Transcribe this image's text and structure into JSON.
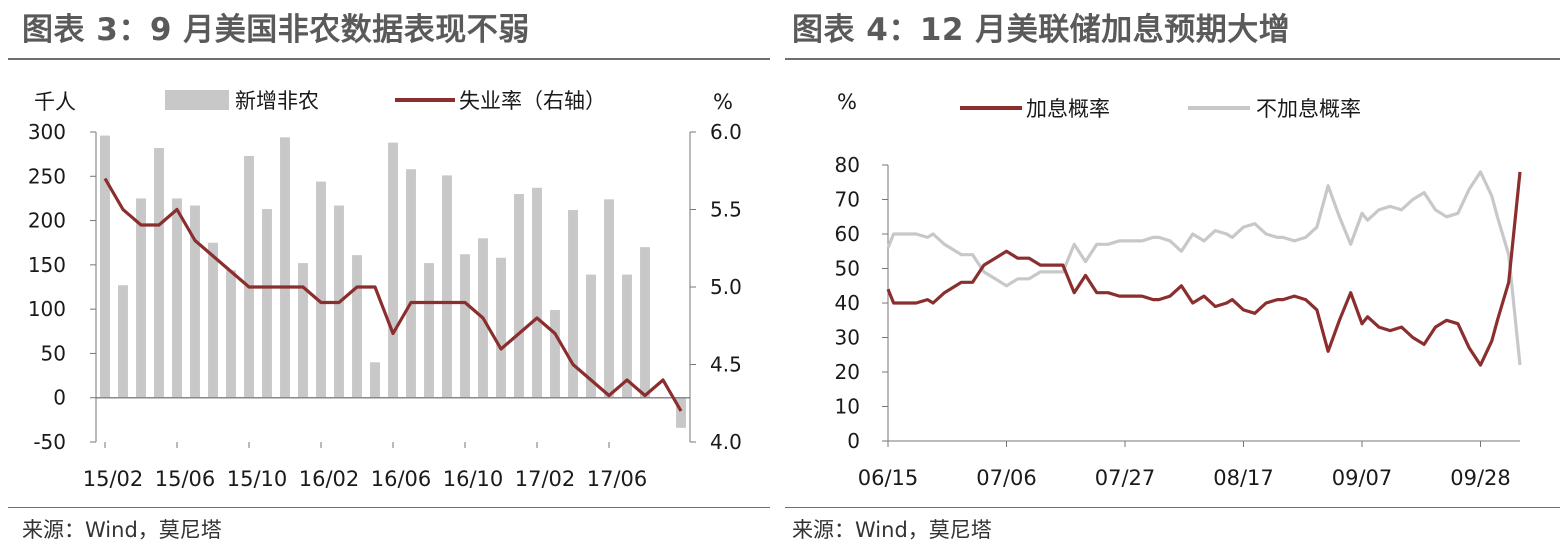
{
  "left": {
    "title": "图表 3：9 月美国非农数据表现不弱",
    "source": "来源：Wind，莫尼塔"
  },
  "right": {
    "title": "图表 4：12 月美联储加息预期大增",
    "source": "来源：Wind，莫尼塔"
  },
  "chart_data": [
    {
      "type": "bar+line",
      "title": "图表 3：9 月美国非农数据表现不弱",
      "ylabel": "千人",
      "y2label": "%",
      "ylim": [
        -50,
        300
      ],
      "yticks": [
        -50,
        0,
        50,
        100,
        150,
        200,
        250,
        300
      ],
      "y2lim": [
        4.0,
        6.0
      ],
      "y2ticks": [
        "4.0",
        "4.5",
        "5.0",
        "5.5",
        "6.0"
      ],
      "x_tick_labels": [
        "15/02",
        "15/06",
        "15/10",
        "16/02",
        "16/06",
        "16/10",
        "17/02",
        "17/06"
      ],
      "x_tick_indices": [
        0,
        4,
        8,
        12,
        16,
        20,
        24,
        28
      ],
      "categories": [
        "15/01",
        "15/02",
        "15/03",
        "15/04",
        "15/05",
        "15/06",
        "15/07",
        "15/08",
        "15/09",
        "15/10",
        "15/11",
        "15/12",
        "16/01",
        "16/02",
        "16/03",
        "16/04",
        "16/05",
        "16/06",
        "16/07",
        "16/08",
        "16/09",
        "16/10",
        "16/11",
        "16/12",
        "17/01",
        "17/02",
        "17/03",
        "17/04",
        "17/05",
        "17/06",
        "17/07",
        "17/08",
        "17/09"
      ],
      "legend_position": "top",
      "series": [
        {
          "name": "新增非农",
          "kind": "bar",
          "axis": "left",
          "color": "#c8c8c8",
          "values": [
            296,
            127,
            225,
            282,
            225,
            217,
            175,
            144,
            273,
            213,
            294,
            152,
            244,
            217,
            161,
            40,
            288,
            258,
            152,
            251,
            162,
            180,
            158,
            230,
            237,
            99,
            212,
            139,
            224,
            139,
            170,
            0,
            -34
          ]
        },
        {
          "name": "失业率（右轴）",
          "kind": "line",
          "axis": "right",
          "color": "#8b2e2e",
          "values": [
            5.7,
            5.5,
            5.4,
            5.4,
            5.5,
            5.3,
            5.2,
            5.1,
            5.0,
            5.0,
            5.0,
            5.0,
            4.9,
            4.9,
            5.0,
            5.0,
            4.7,
            4.9,
            4.9,
            4.9,
            4.9,
            4.8,
            4.6,
            4.7,
            4.8,
            4.7,
            4.5,
            4.4,
            4.3,
            4.4,
            4.3,
            4.4,
            4.2
          ]
        }
      ]
    },
    {
      "type": "line",
      "title": "图表 4：12 月美联储加息预期大增",
      "ylabel": "%",
      "ylim": [
        0,
        80
      ],
      "yticks": [
        0,
        10,
        20,
        30,
        40,
        50,
        60,
        70,
        80
      ],
      "x_tick_labels": [
        "06/15",
        "07/06",
        "07/27",
        "08/17",
        "09/07",
        "09/28"
      ],
      "x_tick_indices": [
        0,
        21,
        42,
        63,
        84,
        105
      ],
      "x_range": [
        0,
        112
      ],
      "legend_position": "top",
      "series": [
        {
          "name": "加息概率",
          "color": "#8b2e2e",
          "x": [
            0,
            1,
            3,
            5,
            7,
            8,
            10,
            11,
            13,
            15,
            17,
            19,
            21,
            23,
            25,
            27,
            29,
            31,
            33,
            35,
            37,
            39,
            41,
            43,
            45,
            47,
            48,
            50,
            52,
            54,
            56,
            58,
            60,
            61,
            63,
            65,
            67,
            69,
            70,
            72,
            74,
            76,
            78,
            80,
            82,
            84,
            85,
            87,
            89,
            91,
            93,
            95,
            97,
            99,
            101,
            103,
            105,
            107,
            108,
            110,
            112
          ],
          "values": [
            44,
            40,
            40,
            40,
            41,
            40,
            43,
            44,
            46,
            46,
            51,
            53,
            55,
            53,
            53,
            51,
            51,
            51,
            43,
            48,
            43,
            43,
            42,
            42,
            42,
            41,
            41,
            42,
            45,
            40,
            42,
            39,
            40,
            41,
            38,
            37,
            40,
            41,
            41,
            42,
            41,
            38,
            26,
            35,
            43,
            34,
            36,
            33,
            32,
            33,
            30,
            28,
            33,
            35,
            34,
            27,
            22,
            29,
            35,
            46,
            78
          ]
        },
        {
          "name": "不加息概率",
          "color": "#c8c8c8",
          "x": [
            0,
            1,
            3,
            5,
            7,
            8,
            10,
            11,
            13,
            15,
            17,
            19,
            21,
            23,
            25,
            27,
            29,
            31,
            33,
            35,
            37,
            39,
            41,
            43,
            45,
            47,
            48,
            50,
            52,
            54,
            56,
            58,
            60,
            61,
            63,
            65,
            67,
            69,
            70,
            72,
            74,
            76,
            78,
            80,
            82,
            84,
            85,
            87,
            89,
            91,
            93,
            95,
            97,
            99,
            101,
            103,
            105,
            107,
            108,
            110,
            112
          ],
          "values": [
            56,
            60,
            60,
            60,
            59,
            60,
            57,
            56,
            54,
            54,
            49,
            47,
            45,
            47,
            47,
            49,
            49,
            49,
            57,
            52,
            57,
            57,
            58,
            58,
            58,
            59,
            59,
            58,
            55,
            60,
            58,
            61,
            60,
            59,
            62,
            63,
            60,
            59,
            59,
            58,
            59,
            62,
            74,
            65,
            57,
            66,
            64,
            67,
            68,
            67,
            70,
            72,
            67,
            65,
            66,
            73,
            78,
            71,
            65,
            54,
            22
          ]
        }
      ]
    }
  ]
}
